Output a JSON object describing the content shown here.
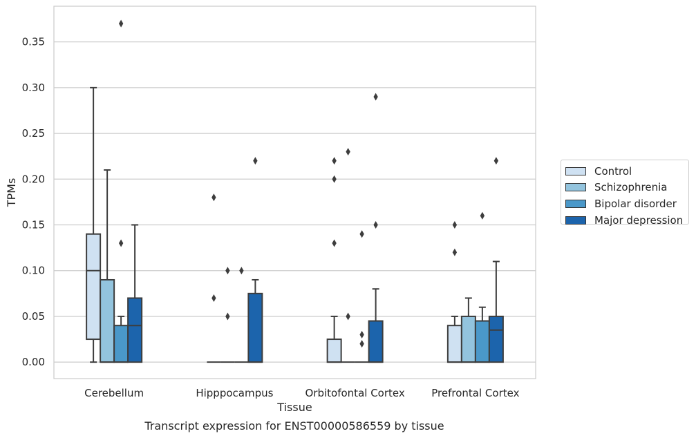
{
  "chart_data": {
    "type": "box",
    "title": "",
    "caption": "Transcript expression for ENST00000586559 by tissue",
    "xlabel": "Tissue",
    "ylabel": "TPMs",
    "ylim": [
      -0.018,
      0.389
    ],
    "yticks": [
      0.0,
      0.05,
      0.1,
      0.15,
      0.2,
      0.25,
      0.3,
      0.35
    ],
    "ytick_labels": [
      "0.00",
      "0.05",
      "0.10",
      "0.15",
      "0.20",
      "0.25",
      "0.30",
      "0.35"
    ],
    "grid": "horizontal",
    "legend_position": "right",
    "categories": [
      "Cerebellum",
      "Hipppocampus",
      "Orbitofontal Cortex",
      "Prefrontal Cortex"
    ],
    "series": [
      {
        "name": "Control",
        "color": "#cfe1f2",
        "boxes": [
          {
            "whisker_low": 0.0,
            "q1": 0.025,
            "median": 0.1,
            "q3": 0.14,
            "whisker_high": 0.3,
            "outliers": []
          },
          {
            "whisker_low": 0.0,
            "q1": 0.0,
            "median": 0.0,
            "q3": 0.0,
            "whisker_high": 0.0,
            "outliers": [
              0.07,
              0.18
            ]
          },
          {
            "whisker_low": 0.0,
            "q1": 0.0,
            "median": 0.0,
            "q3": 0.025,
            "whisker_high": 0.05,
            "outliers": [
              0.13,
              0.2,
              0.22
            ]
          },
          {
            "whisker_low": 0.0,
            "q1": 0.0,
            "median": 0.0,
            "q3": 0.04,
            "whisker_high": 0.05,
            "outliers": [
              0.12,
              0.15
            ]
          }
        ]
      },
      {
        "name": "Schizophrenia",
        "color": "#93c4de",
        "boxes": [
          {
            "whisker_low": 0.0,
            "q1": 0.0,
            "median": 0.0,
            "q3": 0.09,
            "whisker_high": 0.21,
            "outliers": []
          },
          {
            "whisker_low": 0.0,
            "q1": 0.0,
            "median": 0.0,
            "q3": 0.0,
            "whisker_high": 0.0,
            "outliers": [
              0.05,
              0.1
            ]
          },
          {
            "whisker_low": 0.0,
            "q1": 0.0,
            "median": 0.0,
            "q3": 0.0,
            "whisker_high": 0.0,
            "outliers": [
              0.05,
              0.23
            ]
          },
          {
            "whisker_low": 0.0,
            "q1": 0.0,
            "median": 0.0,
            "q3": 0.05,
            "whisker_high": 0.07,
            "outliers": []
          }
        ]
      },
      {
        "name": "Bipolar disorder",
        "color": "#4a98c9",
        "boxes": [
          {
            "whisker_low": 0.0,
            "q1": 0.0,
            "median": 0.0,
            "q3": 0.04,
            "whisker_high": 0.05,
            "outliers": [
              0.13,
              0.37
            ]
          },
          {
            "whisker_low": 0.0,
            "q1": 0.0,
            "median": 0.0,
            "q3": 0.0,
            "whisker_high": 0.0,
            "outliers": [
              0.1
            ]
          },
          {
            "whisker_low": 0.0,
            "q1": 0.0,
            "median": 0.0,
            "q3": 0.0,
            "whisker_high": 0.0,
            "outliers": [
              0.02,
              0.03,
              0.14
            ]
          },
          {
            "whisker_low": 0.0,
            "q1": 0.0,
            "median": 0.0,
            "q3": 0.045,
            "whisker_high": 0.06,
            "outliers": [
              0.16
            ]
          }
        ]
      },
      {
        "name": "Major depression",
        "color": "#1c64ac",
        "boxes": [
          {
            "whisker_low": 0.0,
            "q1": 0.0,
            "median": 0.04,
            "q3": 0.07,
            "whisker_high": 0.15,
            "outliers": []
          },
          {
            "whisker_low": 0.0,
            "q1": 0.0,
            "median": 0.0,
            "q3": 0.075,
            "whisker_high": 0.09,
            "outliers": [
              0.22
            ]
          },
          {
            "whisker_low": 0.0,
            "q1": 0.0,
            "median": 0.0,
            "q3": 0.045,
            "whisker_high": 0.08,
            "outliers": [
              0.15,
              0.29
            ]
          },
          {
            "whisker_low": 0.0,
            "q1": 0.0,
            "median": 0.035,
            "q3": 0.05,
            "whisker_high": 0.11,
            "outliers": [
              0.22
            ]
          }
        ]
      }
    ]
  }
}
